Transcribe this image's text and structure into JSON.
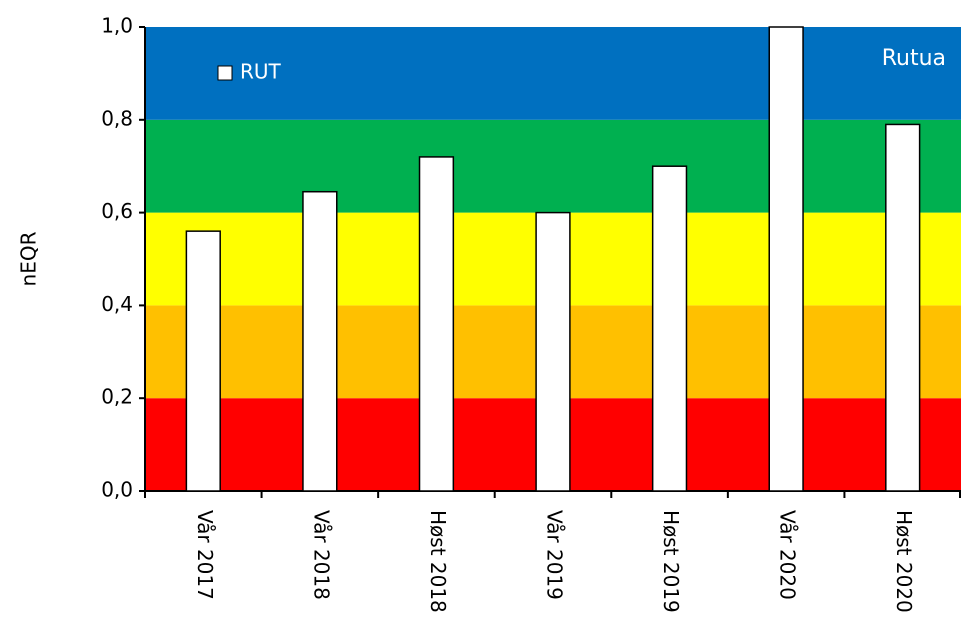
{
  "chart_data": {
    "type": "bar",
    "annotation": "Rutua",
    "y_label": "nEQR",
    "categories": [
      "Vår 2017",
      "Vår 2018",
      "Høst 2018",
      "Vår 2019",
      "Høst 2019",
      "Vår 2020",
      "Høst 2020"
    ],
    "series": [
      {
        "name": "RUT",
        "color": "#ffffff",
        "values": [
          0.56,
          0.645,
          0.72,
          0.6,
          0.7,
          1.0,
          0.79
        ]
      }
    ],
    "ylim": [
      0,
      1
    ],
    "yticks": [
      {
        "value": 0,
        "label": "0,0"
      },
      {
        "value": 0.2,
        "label": "0,2"
      },
      {
        "value": 0.4,
        "label": "0,4"
      },
      {
        "value": 0.6,
        "label": "0,6"
      },
      {
        "value": 0.8,
        "label": "0,8"
      },
      {
        "value": 1,
        "label": "1,0"
      }
    ],
    "bands": [
      {
        "from": 0,
        "to": 0.2,
        "color": "#ff0000"
      },
      {
        "from": 0.2,
        "to": 0.4,
        "color": "#ffc000"
      },
      {
        "from": 0.4,
        "to": 0.6,
        "color": "#ffff00"
      },
      {
        "from": 0.6,
        "to": 0.8,
        "color": "#00b050"
      },
      {
        "from": 0.8,
        "to": 1,
        "color": "#0070c0"
      }
    ],
    "legend": "upper left"
  }
}
